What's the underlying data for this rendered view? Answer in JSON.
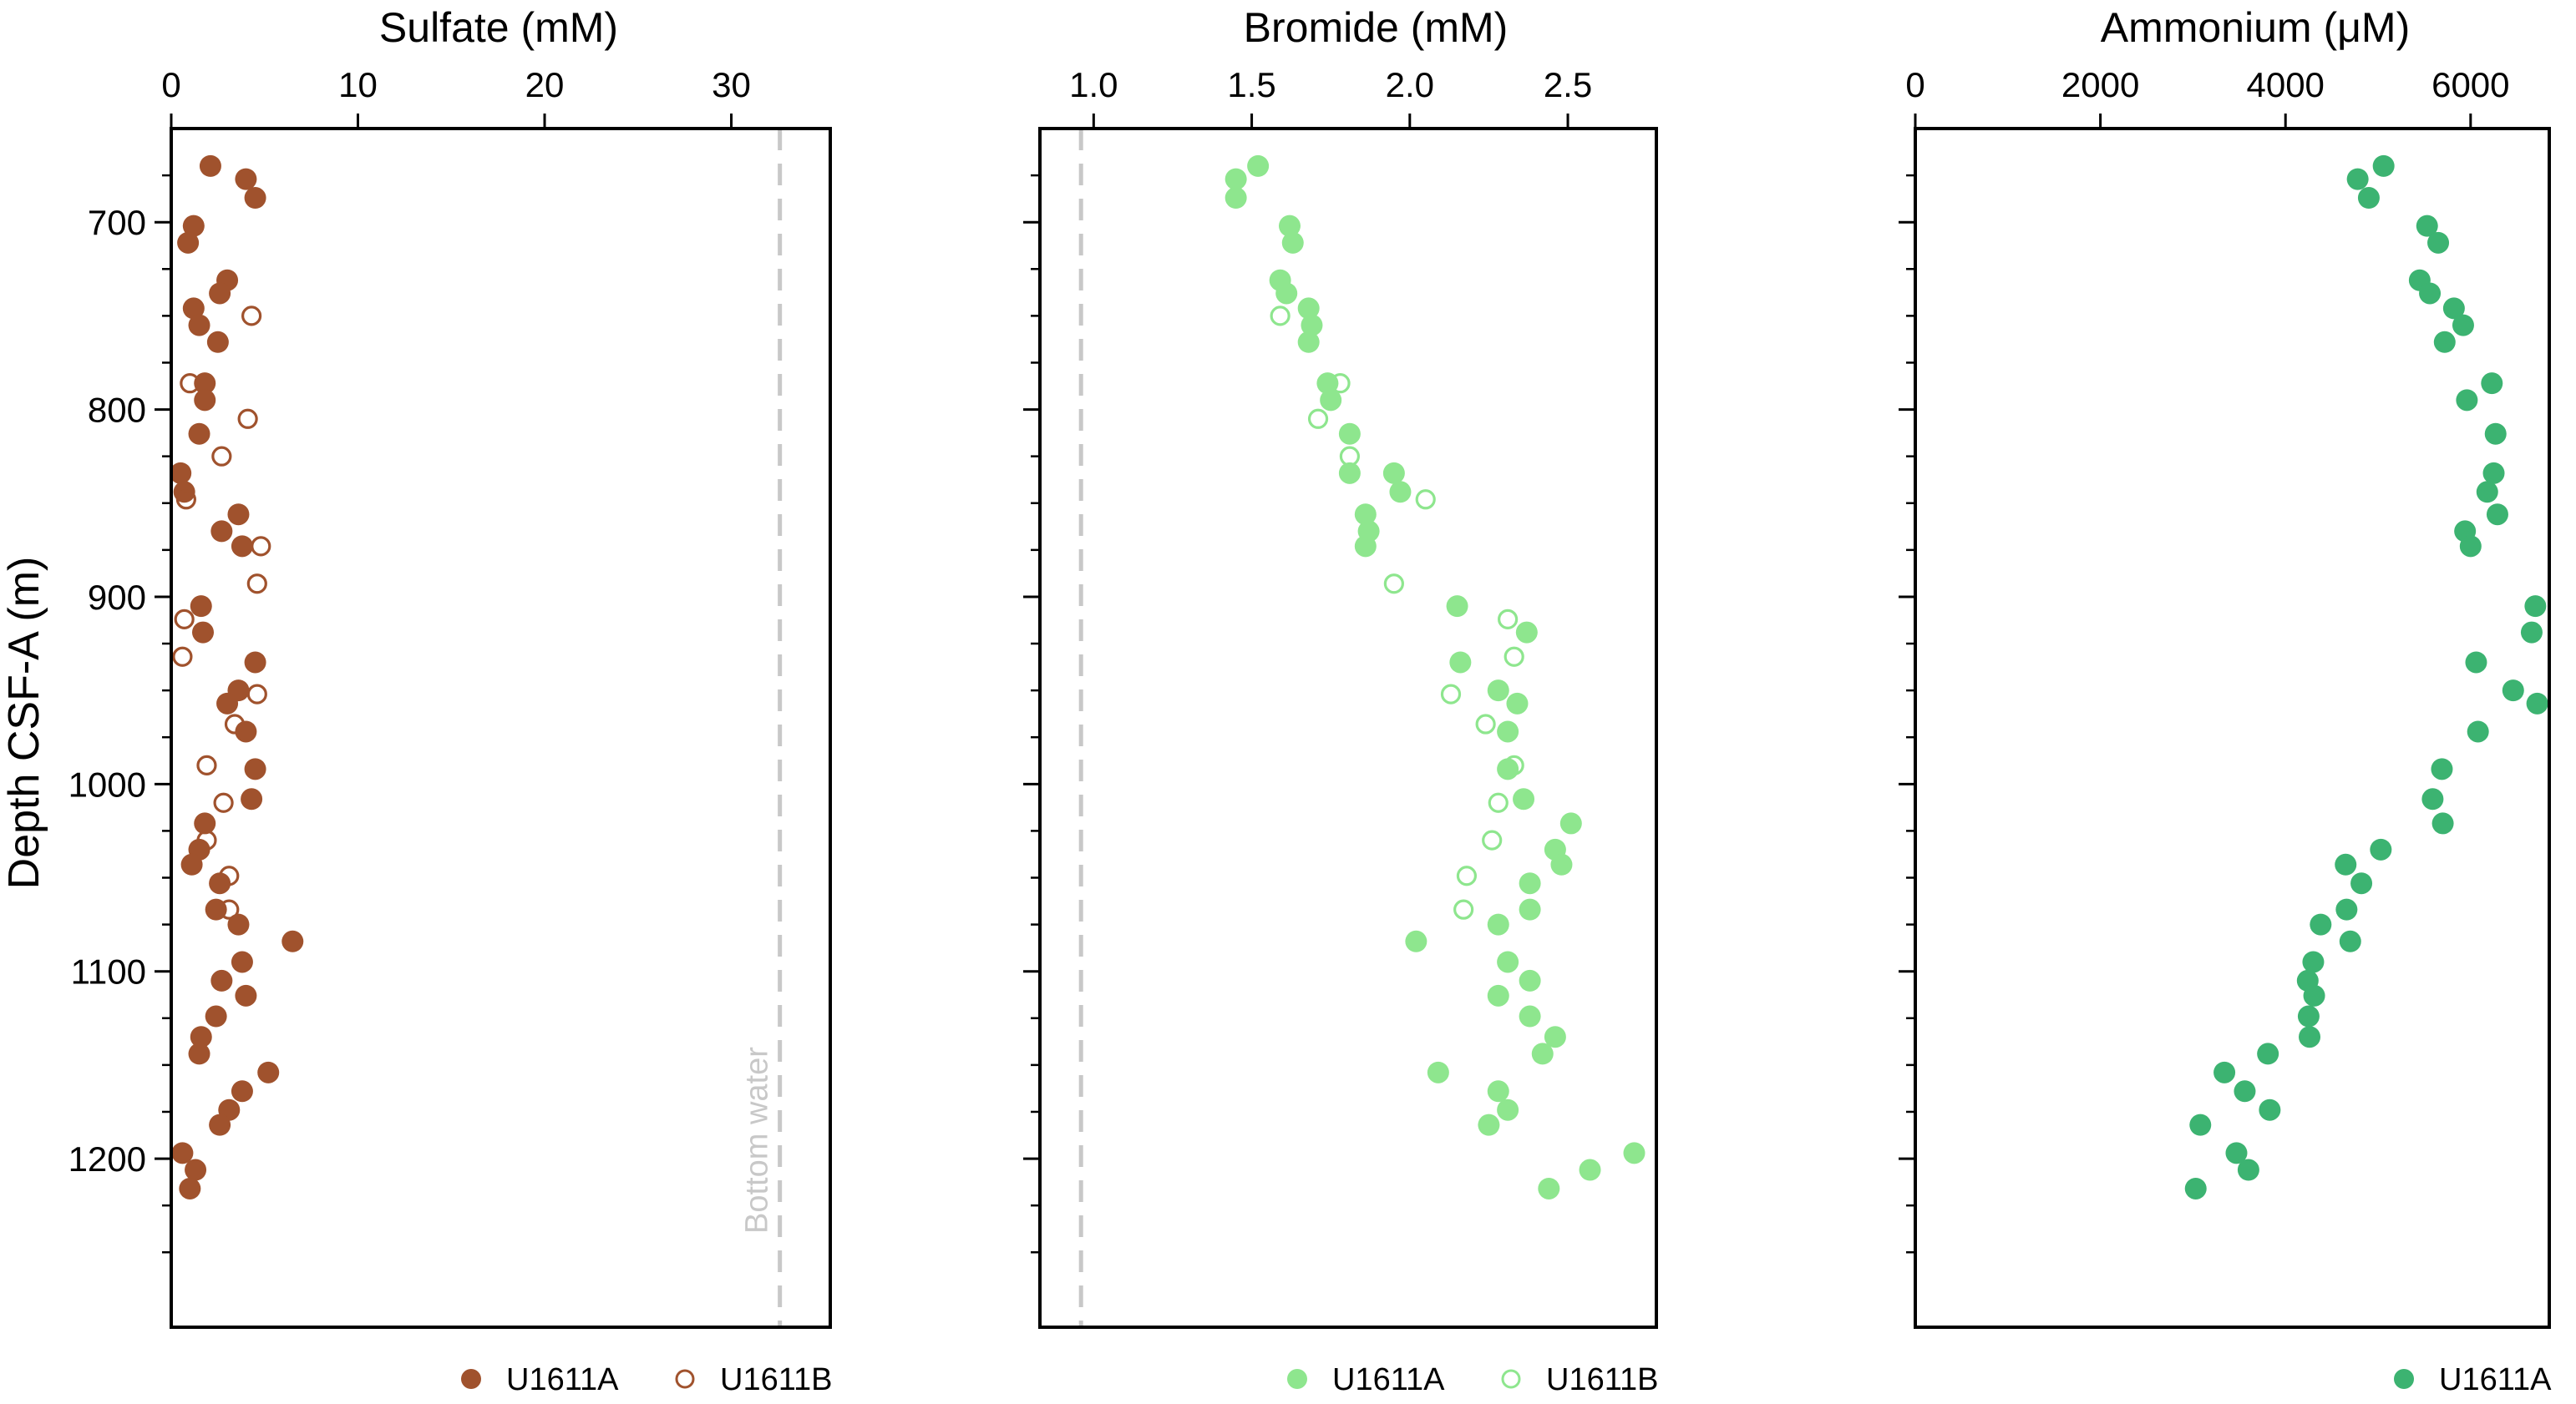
{
  "y_axis": {
    "label": "Depth CSF-A (m)",
    "range": [
      1290,
      650
    ],
    "ticks": [
      700,
      800,
      900,
      1000,
      1100,
      1200
    ],
    "minor_ticks": [
      675,
      725,
      750,
      775,
      825,
      850,
      875,
      925,
      950,
      975,
      1025,
      1050,
      1075,
      1125,
      1150,
      1175,
      1225,
      1250
    ]
  },
  "chart_data": [
    {
      "type": "scatter",
      "title": "Sulfate (mM)",
      "xlabel": "Sulfate (mM)",
      "ylabel": "Depth CSF-A (m)",
      "xlim": [
        0,
        35.3
      ],
      "ylim": [
        1290,
        650
      ],
      "x_axis_position": "top",
      "xticks": [
        0,
        10,
        20,
        30
      ],
      "color": "#A0522D",
      "reference_line": {
        "x": 32.6,
        "label": "Bottom water",
        "color": "#c8c8c8",
        "style": "dashed"
      },
      "legend": [
        "U1611A",
        "U1611B"
      ],
      "series": [
        {
          "name": "U1611A",
          "marker": "filled",
          "points": [
            [
              2.1,
              670
            ],
            [
              4.0,
              677
            ],
            [
              4.5,
              687
            ],
            [
              1.2,
              702
            ],
            [
              0.9,
              711
            ],
            [
              3.0,
              731
            ],
            [
              2.6,
              738
            ],
            [
              1.2,
              746
            ],
            [
              1.5,
              755
            ],
            [
              2.5,
              764
            ],
            [
              1.8,
              786
            ],
            [
              1.8,
              795
            ],
            [
              1.5,
              813
            ],
            [
              0.5,
              834
            ],
            [
              0.7,
              844
            ],
            [
              3.6,
              856
            ],
            [
              2.7,
              865
            ],
            [
              3.8,
              873
            ],
            [
              1.6,
              905
            ],
            [
              1.7,
              919
            ],
            [
              4.5,
              935
            ],
            [
              3.6,
              950
            ],
            [
              3.0,
              957
            ],
            [
              4.0,
              972
            ],
            [
              4.5,
              992
            ],
            [
              4.3,
              1008
            ],
            [
              1.8,
              1021
            ],
            [
              1.5,
              1035
            ],
            [
              1.1,
              1043
            ],
            [
              2.6,
              1053
            ],
            [
              2.4,
              1067
            ],
            [
              3.6,
              1075
            ],
            [
              6.5,
              1084
            ],
            [
              3.8,
              1095
            ],
            [
              2.7,
              1105
            ],
            [
              4.0,
              1113
            ],
            [
              2.4,
              1124
            ],
            [
              1.6,
              1135
            ],
            [
              1.5,
              1144
            ],
            [
              5.2,
              1154
            ],
            [
              3.8,
              1164
            ],
            [
              3.1,
              1174
            ],
            [
              2.6,
              1182
            ],
            [
              0.6,
              1197
            ],
            [
              1.3,
              1206
            ],
            [
              1.0,
              1216
            ]
          ]
        },
        {
          "name": "U1611B",
          "marker": "open",
          "points": [
            [
              4.3,
              750
            ],
            [
              1.0,
              786
            ],
            [
              4.1,
              805
            ],
            [
              2.7,
              825
            ],
            [
              0.8,
              848
            ],
            [
              4.8,
              873
            ],
            [
              4.6,
              893
            ],
            [
              0.7,
              912
            ],
            [
              0.6,
              932
            ],
            [
              4.6,
              952
            ],
            [
              3.4,
              968
            ],
            [
              1.9,
              990
            ],
            [
              2.8,
              1010
            ],
            [
              1.9,
              1030
            ],
            [
              3.1,
              1049
            ],
            [
              3.1,
              1067
            ]
          ]
        }
      ]
    },
    {
      "type": "scatter",
      "title": "Bromide (mM)",
      "xlabel": "Bromide (mM)",
      "ylabel": "",
      "xlim": [
        0.83,
        2.78
      ],
      "ylim": [
        1290,
        650
      ],
      "x_axis_position": "top",
      "xticks": [
        1.0,
        1.5,
        2.0,
        2.5
      ],
      "color": "#8EE68E",
      "reference_line": {
        "x": 0.96,
        "label": "",
        "color": "#c8c8c8",
        "style": "dashed"
      },
      "legend": [
        "U1611A",
        "U1611B"
      ],
      "series": [
        {
          "name": "U1611A",
          "marker": "filled",
          "points": [
            [
              1.52,
              670
            ],
            [
              1.45,
              677
            ],
            [
              1.45,
              687
            ],
            [
              1.62,
              702
            ],
            [
              1.63,
              711
            ],
            [
              1.59,
              731
            ],
            [
              1.61,
              738
            ],
            [
              1.68,
              746
            ],
            [
              1.69,
              755
            ],
            [
              1.68,
              764
            ],
            [
              1.74,
              786
            ],
            [
              1.75,
              795
            ],
            [
              1.81,
              813
            ],
            [
              1.81,
              834
            ],
            [
              1.95,
              834
            ],
            [
              1.97,
              844
            ],
            [
              1.86,
              856
            ],
            [
              1.87,
              865
            ],
            [
              1.86,
              873
            ],
            [
              2.15,
              905
            ],
            [
              2.37,
              919
            ],
            [
              2.16,
              935
            ],
            [
              2.28,
              950
            ],
            [
              2.34,
              957
            ],
            [
              2.31,
              972
            ],
            [
              2.31,
              992
            ],
            [
              2.36,
              1008
            ],
            [
              2.51,
              1021
            ],
            [
              2.46,
              1035
            ],
            [
              2.48,
              1043
            ],
            [
              2.38,
              1053
            ],
            [
              2.38,
              1067
            ],
            [
              2.28,
              1075
            ],
            [
              2.02,
              1084
            ],
            [
              2.31,
              1095
            ],
            [
              2.38,
              1105
            ],
            [
              2.28,
              1113
            ],
            [
              2.38,
              1124
            ],
            [
              2.46,
              1135
            ],
            [
              2.42,
              1144
            ],
            [
              2.09,
              1154
            ],
            [
              2.28,
              1164
            ],
            [
              2.31,
              1174
            ],
            [
              2.25,
              1182
            ],
            [
              2.71,
              1197
            ],
            [
              2.57,
              1206
            ],
            [
              2.44,
              1216
            ]
          ]
        },
        {
          "name": "U1611B",
          "marker": "open",
          "points": [
            [
              1.59,
              750
            ],
            [
              1.78,
              786
            ],
            [
              1.71,
              805
            ],
            [
              1.81,
              825
            ],
            [
              2.05,
              848
            ],
            [
              1.95,
              893
            ],
            [
              2.31,
              912
            ],
            [
              2.33,
              932
            ],
            [
              2.13,
              952
            ],
            [
              2.24,
              968
            ],
            [
              2.33,
              990
            ],
            [
              2.28,
              1010
            ],
            [
              2.26,
              1030
            ],
            [
              2.18,
              1049
            ],
            [
              2.17,
              1067
            ]
          ]
        }
      ]
    },
    {
      "type": "scatter",
      "title": "Ammonium (μM)",
      "xlabel": "Ammonium (μM)",
      "ylabel": "",
      "xlim": [
        0,
        6850
      ],
      "ylim": [
        1290,
        650
      ],
      "x_axis_position": "top",
      "xticks": [
        0,
        2000,
        4000,
        6000
      ],
      "color": "#3CB371",
      "legend": [
        "U1611A"
      ],
      "series": [
        {
          "name": "U1611A",
          "marker": "filled",
          "points": [
            [
              5060,
              670
            ],
            [
              4780,
              677
            ],
            [
              4900,
              687
            ],
            [
              5530,
              702
            ],
            [
              5650,
              711
            ],
            [
              5450,
              731
            ],
            [
              5560,
              738
            ],
            [
              5820,
              746
            ],
            [
              5920,
              755
            ],
            [
              5720,
              764
            ],
            [
              6230,
              786
            ],
            [
              5960,
              795
            ],
            [
              6270,
              813
            ],
            [
              6250,
              834
            ],
            [
              6180,
              844
            ],
            [
              6290,
              856
            ],
            [
              5940,
              865
            ],
            [
              6000,
              873
            ],
            [
              6700,
              905
            ],
            [
              6660,
              919
            ],
            [
              6060,
              935
            ],
            [
              6460,
              950
            ],
            [
              6720,
              957
            ],
            [
              6080,
              972
            ],
            [
              5690,
              992
            ],
            [
              5590,
              1008
            ],
            [
              5700,
              1021
            ],
            [
              5030,
              1035
            ],
            [
              4650,
              1043
            ],
            [
              4820,
              1053
            ],
            [
              4660,
              1067
            ],
            [
              4380,
              1075
            ],
            [
              4700,
              1084
            ],
            [
              4300,
              1095
            ],
            [
              4240,
              1105
            ],
            [
              4310,
              1113
            ],
            [
              4250,
              1124
            ],
            [
              4260,
              1135
            ],
            [
              3810,
              1144
            ],
            [
              3340,
              1154
            ],
            [
              3560,
              1164
            ],
            [
              3830,
              1174
            ],
            [
              3080,
              1182
            ],
            [
              3470,
              1197
            ],
            [
              3600,
              1206
            ],
            [
              3030,
              1216
            ]
          ]
        }
      ]
    }
  ]
}
